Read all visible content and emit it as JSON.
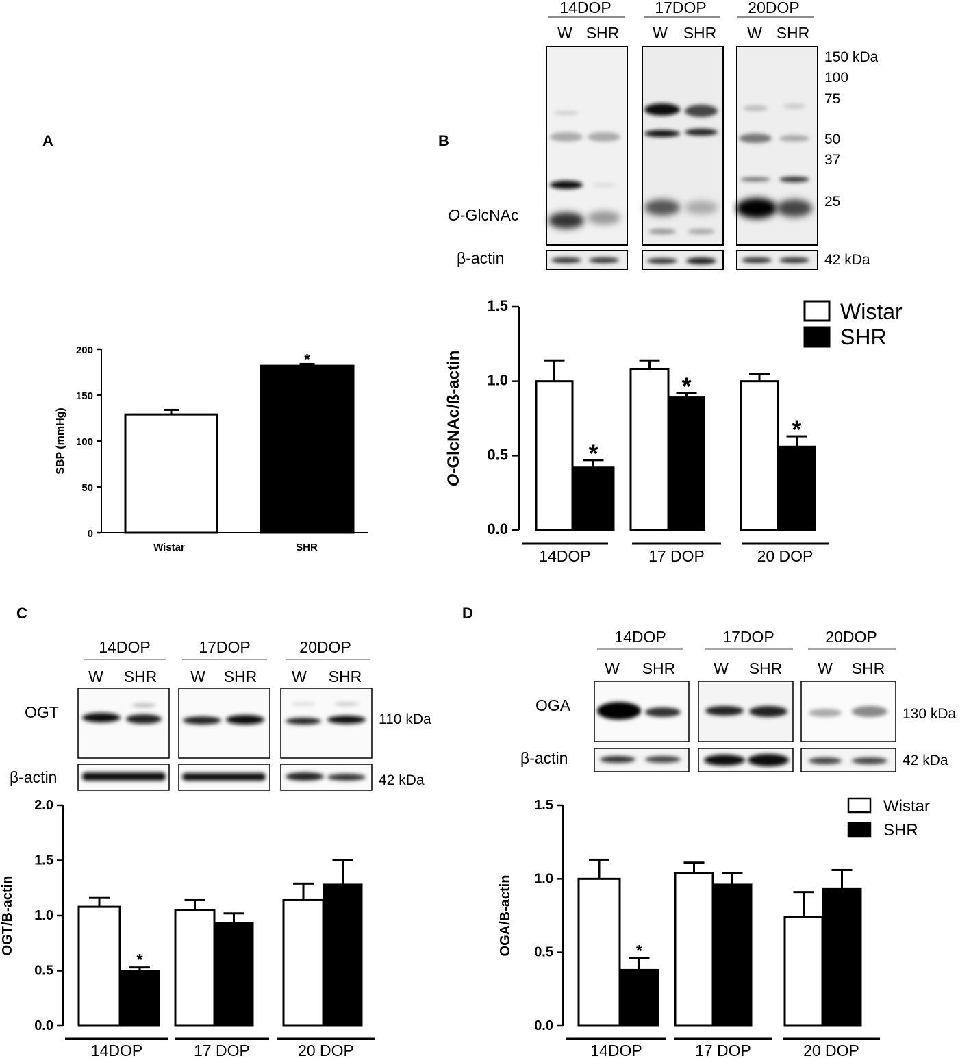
{
  "panels": {
    "A": "A",
    "B": "B",
    "C": "C",
    "D": "D"
  },
  "colors": {
    "wistar_fill": "#ffffff",
    "shr_fill": "#000000",
    "axis": "#000000"
  },
  "blot_B": {
    "groups": [
      "14DOP",
      "17DOP",
      "20DOP"
    ],
    "lanes": [
      "W",
      "SHR"
    ],
    "markers": [
      "150 kDa",
      "100",
      "75",
      "50",
      "37",
      "25"
    ],
    "row_labels": {
      "main_italic": "O",
      "main_rest": "-GlcNAc",
      "actin": "β-actin"
    },
    "actin_kda": "42 kDa"
  },
  "blot_C": {
    "groups": [
      "14DOP",
      "17DOP",
      "20DOP"
    ],
    "lanes": [
      "W",
      "SHR"
    ],
    "row_labels": {
      "main": "OGT",
      "actin": "β-actin"
    },
    "main_kda": "110 kDa",
    "actin_kda": "42 kDa"
  },
  "blot_D": {
    "groups": [
      "14DOP",
      "17DOP",
      "20DOP"
    ],
    "lanes": [
      "W",
      "SHR"
    ],
    "row_labels": {
      "main": "OGA",
      "actin": "β-actin"
    },
    "main_kda": "130 kDa",
    "actin_kda": "42 kDa"
  },
  "chart_data": [
    {
      "id": "A",
      "type": "bar",
      "categories": [
        "Wistar",
        "SHR"
      ],
      "values": [
        129,
        182
      ],
      "errors": [
        5,
        2
      ],
      "significant": [
        false,
        true
      ],
      "ylabel": "SBP (mmHg)",
      "ylim": [
        0,
        200
      ],
      "yticks": [
        "0",
        "50",
        "100",
        "150",
        "200"
      ]
    },
    {
      "id": "B",
      "type": "bar",
      "categories": [
        "14DOP",
        "17 DOP",
        "20 DOP"
      ],
      "series": [
        {
          "name": "Wistar",
          "values": [
            1.0,
            1.08,
            1.0
          ],
          "errors": [
            0.14,
            0.06,
            0.05
          ],
          "significant": [
            false,
            false,
            false
          ]
        },
        {
          "name": "SHR",
          "values": [
            0.42,
            0.89,
            0.56
          ],
          "errors": [
            0.05,
            0.03,
            0.07
          ],
          "significant": [
            true,
            true,
            true
          ]
        }
      ],
      "ylabel_italic": "O",
      "ylabel_rest": "-GlcNAc/ß-actin",
      "ylim": [
        0,
        1.5
      ],
      "yticks": [
        "0.0",
        "0.5",
        "1.0",
        "1.5"
      ],
      "legend": [
        "Wistar",
        "SHR"
      ],
      "legend_position": "top-right"
    },
    {
      "id": "C",
      "type": "bar",
      "categories": [
        "14DOP",
        "17 DOP",
        "20 DOP"
      ],
      "series": [
        {
          "name": "Wistar",
          "values": [
            1.08,
            1.05,
            1.14
          ],
          "errors": [
            0.08,
            0.09,
            0.15
          ],
          "significant": [
            false,
            false,
            false
          ]
        },
        {
          "name": "SHR",
          "values": [
            0.5,
            0.93,
            1.28
          ],
          "errors": [
            0.03,
            0.09,
            0.22
          ],
          "significant": [
            true,
            false,
            false
          ]
        }
      ],
      "ylabel": "OGT/B-actin",
      "ylim": [
        0,
        2.0
      ],
      "yticks": [
        "0.0",
        "0.5",
        "1.0",
        "1.5",
        "2.0"
      ]
    },
    {
      "id": "D",
      "type": "bar",
      "categories": [
        "14DOP",
        "17 DOP",
        "20 DOP"
      ],
      "series": [
        {
          "name": "Wistar",
          "values": [
            1.0,
            1.04,
            0.74
          ],
          "errors": [
            0.13,
            0.07,
            0.17
          ],
          "significant": [
            false,
            false,
            false
          ]
        },
        {
          "name": "SHR",
          "values": [
            0.38,
            0.96,
            0.93
          ],
          "errors": [
            0.08,
            0.08,
            0.13
          ],
          "significant": [
            true,
            false,
            false
          ]
        }
      ],
      "ylabel": "OGA/B-actin",
      "ylim": [
        0,
        1.5
      ],
      "yticks": [
        "0.0",
        "0.5",
        "1.0",
        "1.5"
      ],
      "legend": [
        "Wistar",
        "SHR"
      ],
      "legend_position": "top-right"
    }
  ],
  "star": "*"
}
